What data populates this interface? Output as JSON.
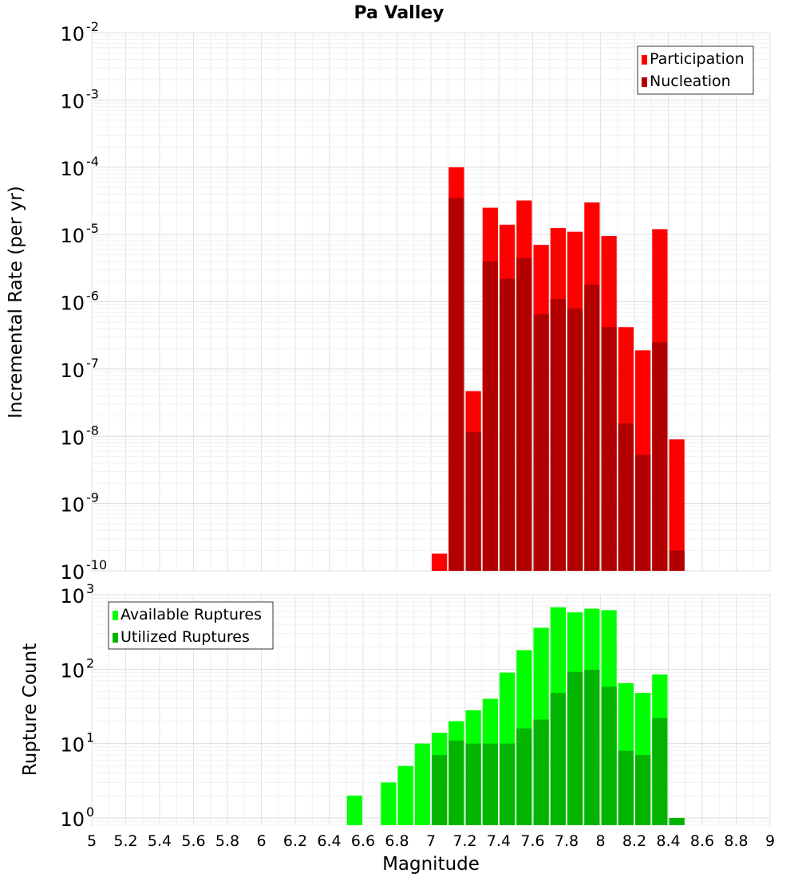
{
  "chart_data": [
    {
      "type": "bar",
      "title": "Pa Valley",
      "xlabel": "",
      "ylabel": "Incremental Rate (per yr)",
      "y_scale": "log",
      "ylim": [
        1e-10,
        0.01
      ],
      "xlim": [
        5,
        9
      ],
      "x_ticks": [
        "5",
        "5.2",
        "5.4",
        "5.6",
        "5.8",
        "6",
        "6.2",
        "6.4",
        "6.6",
        "6.8",
        "7",
        "7.2",
        "7.4",
        "7.6",
        "7.8",
        "8",
        "8.2",
        "8.4",
        "8.6",
        "8.8",
        "9"
      ],
      "grid": true,
      "legend_position": "top-right",
      "bar_width": 0.1,
      "x": [
        7.05,
        7.15,
        7.25,
        7.35,
        7.45,
        7.55,
        7.65,
        7.75,
        7.85,
        7.95,
        8.05,
        8.15,
        8.25,
        8.35,
        8.45
      ],
      "series": [
        {
          "name": "Participation",
          "color": "#ff0000",
          "values": [
            1.8e-10,
            0.0001,
            4.7e-08,
            2.5e-05,
            1.4e-05,
            3.2e-05,
            7e-06,
            1.25e-05,
            1.1e-05,
            3e-05,
            9.5e-06,
            4.2e-07,
            1.9e-07,
            1.2e-05,
            9e-09
          ]
        },
        {
          "name": "Nucleation",
          "color": "#b20000",
          "values": [
            null,
            3.5e-05,
            1.15e-08,
            4e-06,
            2.2e-06,
            4.5e-06,
            6.5e-07,
            1.1e-06,
            8e-07,
            1.8e-06,
            4.2e-07,
            1.55e-08,
            5.3e-09,
            2.5e-07,
            2e-10
          ]
        }
      ]
    },
    {
      "type": "bar",
      "title": "",
      "xlabel": "Magnitude",
      "ylabel": "Rupture Count",
      "y_scale": "log",
      "ylim": [
        0.8,
        1000
      ],
      "xlim": [
        5,
        9
      ],
      "grid": true,
      "legend_position": "top-left",
      "bar_width": 0.1,
      "x": [
        6.55,
        6.65,
        6.75,
        6.85,
        6.95,
        7.05,
        7.15,
        7.25,
        7.35,
        7.45,
        7.55,
        7.65,
        7.75,
        7.85,
        7.95,
        8.05,
        8.15,
        8.25,
        8.35,
        8.45
      ],
      "series": [
        {
          "name": "Available Ruptures",
          "color": "#00ff00",
          "values": [
            2,
            null,
            3,
            5,
            10,
            14,
            20,
            28,
            40,
            90,
            180,
            360,
            680,
            580,
            650,
            620,
            65,
            48,
            85,
            1
          ]
        },
        {
          "name": "Utilized Ruptures",
          "color": "#00b400",
          "values": [
            null,
            null,
            null,
            null,
            null,
            7,
            11,
            10,
            10,
            10,
            16,
            21,
            48,
            92,
            98,
            58,
            8,
            7,
            22,
            1
          ]
        }
      ]
    }
  ],
  "labels": {
    "title": "Pa Valley",
    "top_ylabel": "Incremental Rate (per yr)",
    "bottom_ylabel": "Rupture Count",
    "xlabel": "Magnitude"
  }
}
